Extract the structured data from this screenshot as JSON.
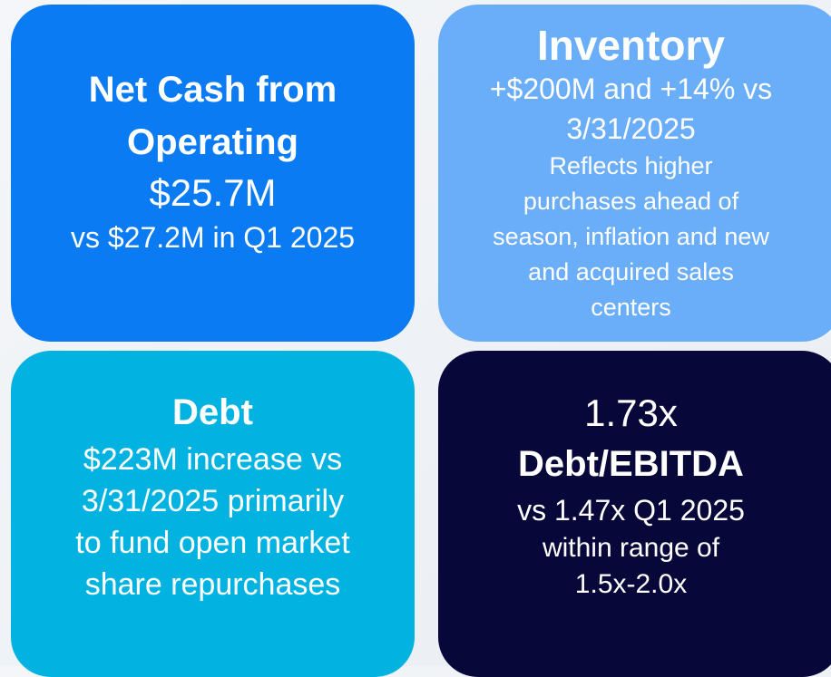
{
  "tiles": [
    {
      "lines": [
        "Net Cash from",
        "Operating",
        "$25.7M",
        "vs $27.2M in Q1 2025"
      ]
    },
    {
      "lines": [
        "Inventory",
        "+$200M and +14% vs",
        "3/31/2025",
        "Reflects higher",
        "purchases ahead of",
        "season, inflation and new",
        "and acquired sales",
        "centers"
      ]
    },
    {
      "lines": [
        "Debt",
        "$223M increase vs",
        "3/31/2025 primarily",
        "to fund open market",
        "share repurchases"
      ]
    },
    {
      "lines": [
        "1.73x",
        "Debt/EBITDA",
        "vs 1.47x Q1 2025",
        "within range of",
        "1.5x-2.0x"
      ]
    }
  ]
}
